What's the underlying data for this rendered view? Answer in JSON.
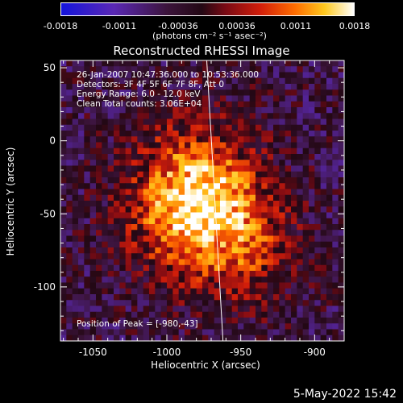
{
  "colorbar": {
    "ticks": [
      "-0.0018",
      "-0.0011",
      "-0.00036",
      "0.00036",
      "0.0011",
      "0.0018"
    ],
    "units": "(photons cm⁻² s⁻¹ asec⁻²)"
  },
  "chart_data": {
    "type": "heatmap",
    "title": "Reconstructed RHESSI Image",
    "xlabel": "Heliocentric X (arcsec)",
    "ylabel": "Heliocentric Y (arcsec)",
    "xlim": [
      -1072,
      -880
    ],
    "ylim": [
      -137,
      55
    ],
    "x_ticks": [
      "-1050",
      "-1000",
      "-950",
      "-900"
    ],
    "y_ticks": [
      "50",
      "0",
      "-50",
      "-100"
    ],
    "x_tick_values": [
      -1050,
      -1000,
      -950,
      -900
    ],
    "y_tick_values": [
      50,
      0,
      -50,
      -100
    ],
    "colormap": "blue-purple-red-orange-yellow-white",
    "vmin": -0.0018,
    "vmax": 0.0018,
    "peak": [
      -980,
      -43
    ],
    "limb_line": [
      [
        -973,
        55
      ],
      [
        -962,
        -137
      ]
    ],
    "annotations": {
      "time": "26-Jan-2007 10:47:36.000 to 10:53:36.000",
      "detectors": "Detectors: 3F 4F 5F 6F 7F 8F, Att 0",
      "energy": "Energy Range: 6.0 - 12.0 keV",
      "method": "Clean      Total counts: 3.06E+04",
      "peak_text": "Position of Peak = [-980,-43]"
    }
  },
  "footer": {
    "timestamp": "5-May-2022 15:42"
  }
}
